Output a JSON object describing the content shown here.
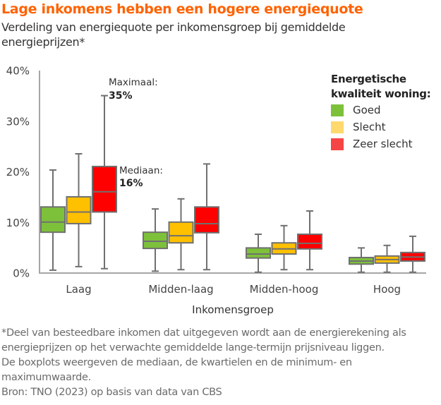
{
  "header": {
    "title": "Lage inkomens hebben een hogere energiequote",
    "subtitle": "Verdeling van energiequote per inkomensgroep bij gemiddelde energieprijzen*"
  },
  "footnote": {
    "lines": [
      "*Deel van besteedbare inkomen dat uitgegeven wordt aan de energierekening als",
      "energieprijzen op het verwachte gemiddelde lange-termijn prijsniveau liggen.",
      "De boxplots weergeven de mediaan, de kwartielen en de minimum- en",
      "maximumwaarde.",
      "Bron: TNO (2023) op basis van data van CBS"
    ]
  },
  "chart_data": {
    "type": "boxplot",
    "title": "Lage inkomens hebben een hogere energiequote",
    "subtitle": "Verdeling van energiequote per inkomensgroep bij gemiddelde energieprijzen*",
    "xlabel": "Inkomensgroep",
    "ylabel": "",
    "ylim": [
      0,
      40
    ],
    "yticks": [
      0,
      10,
      20,
      30,
      40
    ],
    "ytick_labels": [
      "0%",
      "10%",
      "20%",
      "30%",
      "40%"
    ],
    "grid": false,
    "categories": [
      "Laag",
      "Midden-laag",
      "Midden-hoog",
      "Hoog"
    ],
    "legend": {
      "title": "Energetische kwaliteit woning:",
      "placement": "top-right"
    },
    "series": [
      {
        "name": "Goed",
        "color": "#7DC13A",
        "legend_color": "#7DC13A",
        "values": [
          {
            "min": 0.5,
            "q1": 8.0,
            "median": 10.0,
            "q3": 13.0,
            "max": 20.3
          },
          {
            "min": 0.3,
            "q1": 4.8,
            "median": 6.2,
            "q3": 8.0,
            "max": 12.6
          },
          {
            "min": 0.1,
            "q1": 2.9,
            "median": 3.7,
            "q3": 4.9,
            "max": 7.6
          },
          {
            "min": 0.1,
            "q1": 1.7,
            "median": 2.3,
            "q3": 3.0,
            "max": 4.9
          }
        ]
      },
      {
        "name": "Slecht",
        "color": "#FFC000",
        "legend_color": "#FFD86E",
        "values": [
          {
            "min": 1.2,
            "q1": 9.7,
            "median": 12.0,
            "q3": 15.0,
            "max": 23.5
          },
          {
            "min": 0.6,
            "q1": 5.9,
            "median": 7.3,
            "q3": 10.0,
            "max": 14.6
          },
          {
            "min": 0.6,
            "q1": 3.7,
            "median": 4.7,
            "q3": 5.9,
            "max": 9.3
          },
          {
            "min": 0.1,
            "q1": 1.9,
            "median": 2.6,
            "q3": 3.3,
            "max": 5.4
          }
        ]
      },
      {
        "name": "Zeer slecht",
        "color": "#FF0000",
        "legend_color": "#F54545",
        "values": [
          {
            "min": 0.8,
            "q1": 12.0,
            "median": 16.0,
            "q3": 21.0,
            "max": 35.0
          },
          {
            "min": 0.6,
            "q1": 7.9,
            "median": 9.7,
            "q3": 13.0,
            "max": 21.5
          },
          {
            "min": 0.6,
            "q1": 4.7,
            "median": 5.8,
            "q3": 7.6,
            "max": 12.2
          },
          {
            "min": 0.1,
            "q1": 2.3,
            "median": 3.1,
            "q3": 4.0,
            "max": 7.2
          }
        ]
      }
    ],
    "annotations": [
      {
        "label": "Maximaal:",
        "value": "35%",
        "category": "Laag",
        "series": "Zeer slecht",
        "stat": "max"
      },
      {
        "label": "Mediaan:",
        "value": "16%",
        "category": "Laag",
        "series": "Zeer slecht",
        "stat": "median"
      }
    ]
  },
  "colors": {
    "title": "#FF6200",
    "axis": "#A6A6A6",
    "box_stroke": "#707070"
  }
}
